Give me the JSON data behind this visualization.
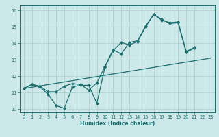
{
  "title": "",
  "xlabel": "Humidex (Indice chaleur)",
  "xlim": [
    -0.5,
    23.5
  ],
  "ylim": [
    9.8,
    16.3
  ],
  "xticks": [
    0,
    1,
    2,
    3,
    4,
    5,
    6,
    7,
    8,
    9,
    10,
    11,
    12,
    13,
    14,
    15,
    16,
    17,
    18,
    19,
    20,
    21,
    22,
    23
  ],
  "yticks": [
    10,
    11,
    12,
    13,
    14,
    15,
    16
  ],
  "bg_color": "#cce8e8",
  "grid_color": "#b0d0d0",
  "line_color": "#1a6e6e",
  "line1_x": [
    0,
    1,
    2,
    3,
    4,
    5,
    6,
    7,
    8,
    9,
    10,
    11,
    12,
    13,
    14,
    15,
    16,
    17,
    18,
    19,
    20,
    21
  ],
  "line1_y": [
    11.25,
    11.5,
    11.35,
    10.9,
    10.2,
    10.05,
    11.35,
    11.45,
    11.45,
    10.35,
    12.55,
    13.55,
    14.05,
    13.9,
    14.1,
    15.0,
    15.75,
    15.45,
    15.2,
    15.25,
    13.45,
    13.7
  ],
  "line2_x": [
    0,
    1,
    2,
    3,
    4,
    5,
    6,
    7,
    8,
    9,
    10,
    11,
    12,
    13,
    14,
    15,
    16,
    17,
    18,
    19,
    20,
    21
  ],
  "line2_y": [
    11.25,
    11.5,
    11.4,
    11.05,
    11.05,
    11.4,
    11.55,
    11.5,
    11.15,
    11.6,
    12.6,
    13.6,
    13.35,
    14.05,
    14.15,
    15.05,
    15.75,
    15.4,
    15.25,
    15.3,
    13.5,
    13.75
  ],
  "line3_x": [
    0,
    23
  ],
  "line3_y": [
    11.25,
    13.1
  ]
}
